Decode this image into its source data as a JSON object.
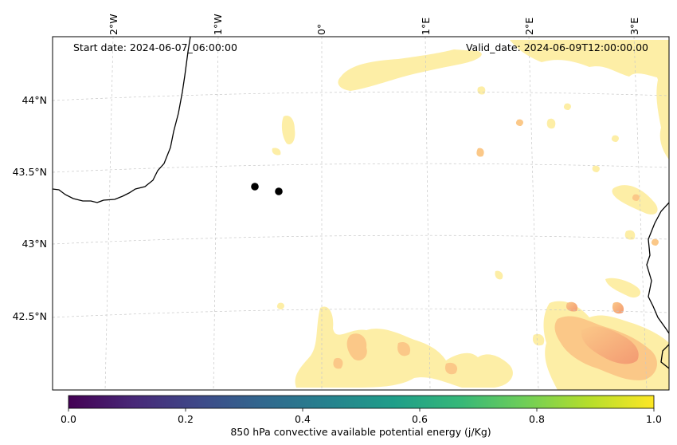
{
  "map": {
    "start_label": "Start date: 2024-06-07_06:00:00",
    "valid_label": "Valid_date: 2024-06-09T12:00:00.00",
    "longitude_ticks": [
      "2°W",
      "1°W",
      "0°",
      "1°E",
      "2°E",
      "3°E"
    ],
    "latitude_ticks": [
      "44°N",
      "43.5°N",
      "43°N",
      "42.5°N"
    ],
    "markers": [
      {
        "name": "point-1"
      },
      {
        "name": "point-2"
      }
    ],
    "colors": {
      "coast": "#000000",
      "grid": "#c8c8c8",
      "field_light": "#fdeea6",
      "field_mid": "#fbc888",
      "field_strong": "#f39a72"
    }
  },
  "colorbar": {
    "label": "850 hPa convective available potential energy (j/Kg)",
    "ticks": [
      "0.0",
      "0.2",
      "0.4",
      "0.6",
      "0.8",
      "1.0"
    ],
    "colormap": "viridis",
    "stops": [
      "#440154",
      "#482878",
      "#3e4989",
      "#31688e",
      "#26828e",
      "#1f9e89",
      "#35b779",
      "#6ece58",
      "#b5de2b",
      "#fde725"
    ]
  }
}
